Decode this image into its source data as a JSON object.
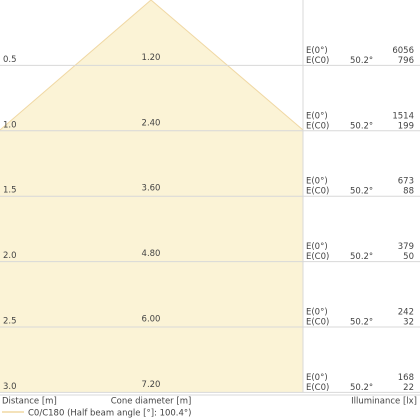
{
  "rows": [
    {
      "distance": "0.5",
      "diameter": "1.20",
      "e0_label": "E(0°)",
      "ec0_label": "E(C0)",
      "angle": "50.2°",
      "e0": "6056",
      "ec0": "796"
    },
    {
      "distance": "1.0",
      "diameter": "2.40",
      "e0_label": "E(0°)",
      "ec0_label": "E(C0)",
      "angle": "50.2°",
      "e0": "1514",
      "ec0": "199"
    },
    {
      "distance": "1.5",
      "diameter": "3.60",
      "e0_label": "E(0°)",
      "ec0_label": "E(C0)",
      "angle": "50.2°",
      "e0": "673",
      "ec0": "88"
    },
    {
      "distance": "2.0",
      "diameter": "4.80",
      "e0_label": "E(0°)",
      "ec0_label": "E(C0)",
      "angle": "50.2°",
      "e0": "379",
      "ec0": "50"
    },
    {
      "distance": "2.5",
      "diameter": "6.00",
      "e0_label": "E(0°)",
      "ec0_label": "E(C0)",
      "angle": "50.2°",
      "e0": "242",
      "ec0": "32"
    },
    {
      "distance": "3.0",
      "diameter": "7.20",
      "e0_label": "E(0°)",
      "ec0_label": "E(C0)",
      "angle": "50.2°",
      "e0": "168",
      "ec0": "22"
    }
  ],
  "footer": {
    "distance": "Distance [m]",
    "diameter": "Cone diameter [m]",
    "illuminance": "Illuminance [lx]"
  },
  "legend": "C0/C180 (Half beam angle [°]: 100.4°)"
}
